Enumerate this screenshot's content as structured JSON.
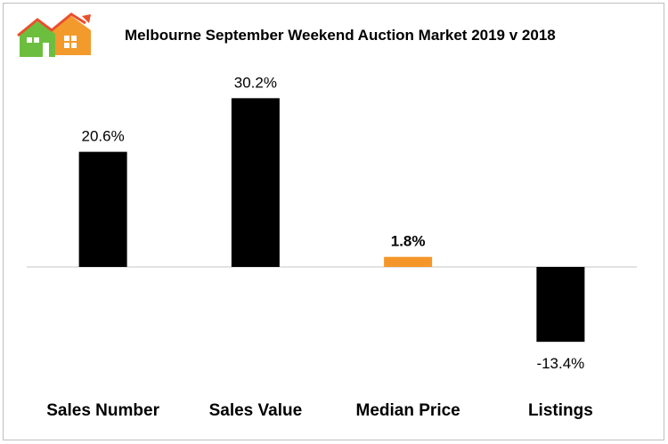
{
  "chart_data": {
    "type": "bar",
    "title": "Melbourne September Weekend Auction Market 2019 v 2018",
    "categories": [
      "Sales Number",
      "Sales Value",
      "Median Price",
      "Listings"
    ],
    "values": [
      20.6,
      30.2,
      1.8,
      -13.4
    ],
    "data_labels": [
      "20.6%",
      "30.2%",
      "1.8%",
      "-13.4%"
    ],
    "highlight_index": 2,
    "unit": "%",
    "ylim": [
      -14,
      32
    ],
    "grid": false,
    "legend": "none",
    "colors": {
      "default_bar": "#000000",
      "highlight_bar": "#f5962a",
      "zero_line": "#d0d0d0"
    }
  },
  "logo": {
    "icon": "house-logo-icon",
    "colors": [
      "#6cbf3e",
      "#f39a2c",
      "#e8502d"
    ]
  }
}
